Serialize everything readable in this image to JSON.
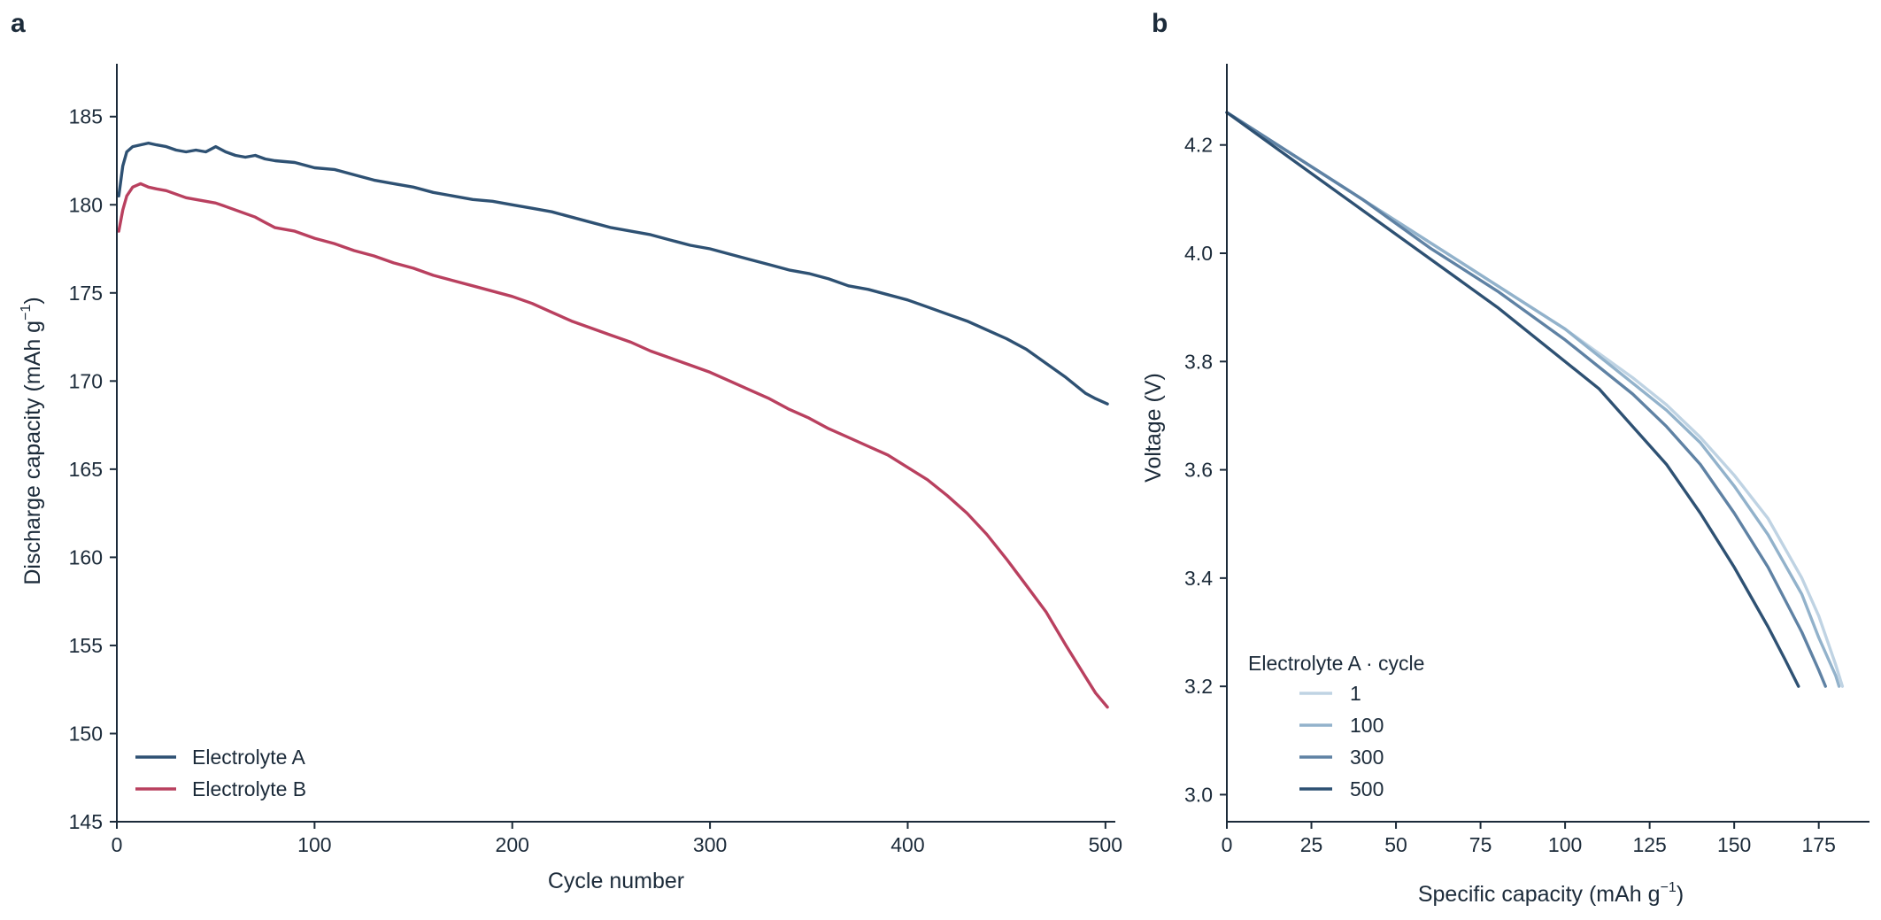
{
  "chart_data": [
    {
      "panel_label": "a",
      "type": "line",
      "xlabel": "Cycle number",
      "ylabel": "Discharge capacity (mAh g",
      "ylabel_sup": "−1",
      "ylabel_end": ")",
      "xlim": [
        0,
        505
      ],
      "ylim": [
        145,
        188
      ],
      "xticks": [
        0,
        100,
        200,
        300,
        400,
        500
      ],
      "yticks": [
        145,
        150,
        155,
        160,
        165,
        170,
        175,
        180,
        185
      ],
      "legend_position": "lower-left",
      "series": [
        {
          "name": "Electrolyte A",
          "color": "#2e5173",
          "x": [
            1,
            3,
            5,
            8,
            12,
            16,
            20,
            25,
            30,
            35,
            40,
            45,
            50,
            55,
            60,
            65,
            70,
            75,
            80,
            90,
            100,
            110,
            120,
            130,
            140,
            150,
            160,
            170,
            180,
            190,
            200,
            210,
            220,
            230,
            240,
            250,
            260,
            270,
            280,
            290,
            300,
            310,
            320,
            330,
            340,
            350,
            360,
            370,
            380,
            390,
            400,
            410,
            420,
            430,
            440,
            450,
            460,
            470,
            480,
            490,
            495,
            501
          ],
          "y": [
            180.5,
            182.2,
            183.0,
            183.3,
            183.4,
            183.5,
            183.4,
            183.3,
            183.1,
            183.0,
            183.1,
            183.0,
            183.3,
            183.0,
            182.8,
            182.7,
            182.8,
            182.6,
            182.5,
            182.4,
            182.1,
            182.0,
            181.7,
            181.4,
            181.2,
            181.0,
            180.7,
            180.5,
            180.3,
            180.2,
            180.0,
            179.8,
            179.6,
            179.3,
            179.0,
            178.7,
            178.5,
            178.3,
            178.0,
            177.7,
            177.5,
            177.2,
            176.9,
            176.6,
            176.3,
            176.1,
            175.8,
            175.4,
            175.2,
            174.9,
            174.6,
            174.2,
            173.8,
            173.4,
            172.9,
            172.4,
            171.8,
            171.0,
            170.2,
            169.3,
            169.0,
            168.7
          ]
        },
        {
          "name": "Electrolyte B",
          "color": "#b9405f",
          "x": [
            1,
            3,
            5,
            8,
            12,
            16,
            20,
            25,
            30,
            35,
            40,
            45,
            50,
            55,
            60,
            65,
            70,
            75,
            80,
            90,
            100,
            110,
            120,
            130,
            140,
            150,
            160,
            170,
            180,
            190,
            200,
            210,
            220,
            230,
            240,
            250,
            260,
            270,
            280,
            290,
            300,
            310,
            320,
            330,
            340,
            350,
            360,
            370,
            380,
            390,
            400,
            410,
            420,
            430,
            440,
            450,
            460,
            470,
            480,
            490,
            495,
            501
          ],
          "y": [
            178.5,
            179.7,
            180.5,
            181.0,
            181.2,
            181.0,
            180.9,
            180.8,
            180.6,
            180.4,
            180.3,
            180.2,
            180.1,
            179.9,
            179.7,
            179.5,
            179.3,
            179.0,
            178.7,
            178.5,
            178.1,
            177.8,
            177.4,
            177.1,
            176.7,
            176.4,
            176.0,
            175.7,
            175.4,
            175.1,
            174.8,
            174.4,
            173.9,
            173.4,
            173.0,
            172.6,
            172.2,
            171.7,
            171.3,
            170.9,
            170.5,
            170.0,
            169.5,
            169.0,
            168.4,
            167.9,
            167.3,
            166.8,
            166.3,
            165.8,
            165.1,
            164.4,
            163.5,
            162.5,
            161.3,
            159.9,
            158.4,
            156.9,
            155.0,
            153.2,
            152.3,
            151.5
          ]
        }
      ]
    },
    {
      "panel_label": "b",
      "type": "line",
      "xlabel": "Specific capacity (mAh g",
      "xlabel_sup": "−1",
      "xlabel_end": ")",
      "ylabel": "Voltage (V)",
      "xlim": [
        0,
        190
      ],
      "ylim": [
        2.95,
        4.35
      ],
      "xticks": [
        0,
        25,
        50,
        75,
        100,
        125,
        150,
        175
      ],
      "yticks": [
        3.0,
        3.2,
        3.4,
        3.6,
        3.8,
        4.0,
        4.2
      ],
      "ytick_labels": [
        "3.0",
        "3.2",
        "3.4",
        "3.6",
        "3.8",
        "4.0",
        "4.2"
      ],
      "legend_title": "Electrolyte A · cycle",
      "legend_position": "lower-left",
      "series": [
        {
          "name": "1",
          "color": "#bfd3e3",
          "x": [
            0,
            20,
            40,
            60,
            80,
            100,
            120,
            130,
            140,
            150,
            160,
            170,
            175,
            180,
            182
          ],
          "y": [
            4.26,
            4.18,
            4.1,
            4.02,
            3.94,
            3.86,
            3.77,
            3.72,
            3.66,
            3.59,
            3.51,
            3.4,
            3.33,
            3.24,
            3.2
          ]
        },
        {
          "name": "100",
          "color": "#92b2cb",
          "x": [
            0,
            20,
            40,
            60,
            80,
            100,
            120,
            130,
            140,
            150,
            160,
            170,
            175,
            180,
            181
          ],
          "y": [
            4.26,
            4.18,
            4.1,
            4.02,
            3.94,
            3.86,
            3.76,
            3.71,
            3.65,
            3.57,
            3.48,
            3.37,
            3.29,
            3.22,
            3.2
          ]
        },
        {
          "name": "300",
          "color": "#5f82a4",
          "x": [
            0,
            20,
            40,
            60,
            80,
            100,
            120,
            130,
            140,
            150,
            160,
            170,
            175,
            177
          ],
          "y": [
            4.26,
            4.18,
            4.1,
            4.01,
            3.93,
            3.84,
            3.74,
            3.68,
            3.61,
            3.52,
            3.42,
            3.3,
            3.23,
            3.2
          ]
        },
        {
          "name": "500",
          "color": "#2e5173",
          "x": [
            0,
            20,
            40,
            60,
            80,
            100,
            110,
            120,
            130,
            140,
            150,
            160,
            165,
            169
          ],
          "y": [
            4.26,
            4.17,
            4.08,
            3.99,
            3.9,
            3.8,
            3.75,
            3.68,
            3.61,
            3.52,
            3.42,
            3.31,
            3.25,
            3.2
          ]
        }
      ]
    }
  ]
}
